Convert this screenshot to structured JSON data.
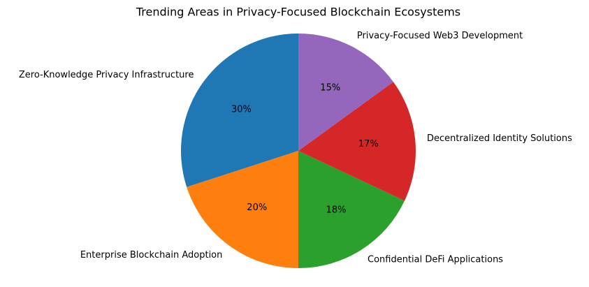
{
  "chart_data": {
    "type": "pie",
    "title": "Trending Areas in Privacy-Focused Blockchain Ecosystems",
    "categories": [
      "Zero-Knowledge Privacy Infrastructure",
      "Enterprise Blockchain Adoption",
      "Confidential DeFi Applications",
      "Decentralized Identity Solutions",
      "Privacy-Focused Web3 Development"
    ],
    "values": [
      30,
      20,
      18,
      17,
      15
    ],
    "value_labels": [
      "30%",
      "20%",
      "18%",
      "17%",
      "15%"
    ],
    "colors": [
      "#1f77b4",
      "#ff7f0e",
      "#2ca02c",
      "#d62728",
      "#9467bd"
    ]
  }
}
